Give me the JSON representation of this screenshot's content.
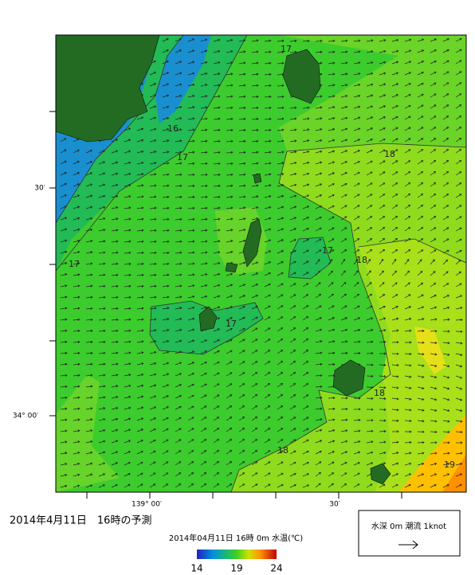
{
  "map": {
    "lat_labels": [
      "30′",
      "34° 00′"
    ],
    "lon_labels": [
      "139° 00′",
      "30′"
    ],
    "contour_labels": [
      "16",
      "17",
      "17",
      "17",
      "17",
      "17",
      "18",
      "18",
      "18",
      "18",
      "19"
    ],
    "caption": "2014年4月11日　16時の予測",
    "subtitle": "2014年04月11日 16時 0m 水温(℃)",
    "colorbar": {
      "range": [
        14,
        24
      ],
      "ticks": [
        14,
        19,
        24
      ]
    },
    "legend": "水深 0m 潮流 1knot"
  }
}
